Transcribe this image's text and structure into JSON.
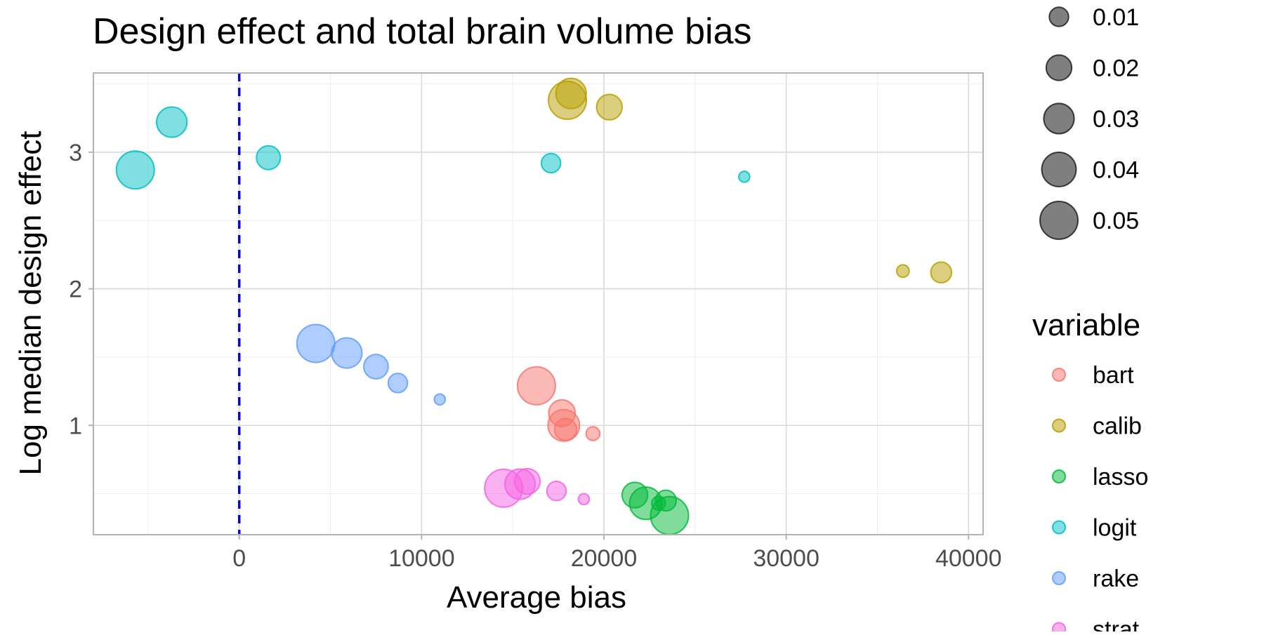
{
  "chart_data": {
    "type": "scatter",
    "title": "Design effect and total brain volume bias",
    "xlabel": "Average bias",
    "ylabel": "Log median design effect",
    "xlim": [
      -8000,
      40800
    ],
    "ylim": [
      0.2,
      3.58
    ],
    "x_ticks": [
      0,
      10000,
      20000,
      30000,
      40000
    ],
    "x_tick_labels": [
      "0",
      "10000",
      "20000",
      "30000",
      "40000"
    ],
    "y_ticks": [
      1,
      2,
      3
    ],
    "y_tick_labels": [
      "1",
      "2",
      "3"
    ],
    "grid": true,
    "reference_line": {
      "axis": "x",
      "value": 0,
      "style": "dashed",
      "color": "#0000EE"
    },
    "size_legend": {
      "title": "",
      "values": [
        0.01,
        0.02,
        0.03,
        0.04,
        0.05
      ],
      "labels": [
        "0.01",
        "0.02",
        "0.03",
        "0.04",
        "0.05"
      ]
    },
    "color_legend": {
      "title": "variable",
      "placement": "right"
    },
    "series": [
      {
        "name": "bart",
        "color": "#F8766D",
        "points": [
          {
            "x": 16300,
            "y": 1.29,
            "size": 0.05
          },
          {
            "x": 17700,
            "y": 1.09,
            "size": 0.022
          },
          {
            "x": 17800,
            "y": 1.0,
            "size": 0.033
          },
          {
            "x": 17900,
            "y": 0.97,
            "size": 0.014
          },
          {
            "x": 19400,
            "y": 0.94,
            "size": 0.004
          }
        ]
      },
      {
        "name": "calib",
        "color": "#B79F00",
        "points": [
          {
            "x": 18000,
            "y": 3.38,
            "size": 0.05
          },
          {
            "x": 18200,
            "y": 3.43,
            "size": 0.03
          },
          {
            "x": 20300,
            "y": 3.33,
            "size": 0.02
          },
          {
            "x": 36400,
            "y": 2.13,
            "size": 0.003
          },
          {
            "x": 38500,
            "y": 2.12,
            "size": 0.012
          }
        ]
      },
      {
        "name": "lasso",
        "color": "#00BA38",
        "points": [
          {
            "x": 21700,
            "y": 0.49,
            "size": 0.02
          },
          {
            "x": 22300,
            "y": 0.43,
            "size": 0.035
          },
          {
            "x": 23000,
            "y": 0.43,
            "size": 0.004
          },
          {
            "x": 23400,
            "y": 0.45,
            "size": 0.012
          },
          {
            "x": 23600,
            "y": 0.34,
            "size": 0.05
          }
        ]
      },
      {
        "name": "logit",
        "color": "#00BFC4",
        "points": [
          {
            "x": -5700,
            "y": 2.87,
            "size": 0.05
          },
          {
            "x": -3700,
            "y": 3.22,
            "size": 0.03
          },
          {
            "x": 1600,
            "y": 2.96,
            "size": 0.017
          },
          {
            "x": 17100,
            "y": 2.92,
            "size": 0.01
          },
          {
            "x": 27700,
            "y": 2.82,
            "size": 0.002
          }
        ]
      },
      {
        "name": "rake",
        "color": "#619CFF",
        "points": [
          {
            "x": 4200,
            "y": 1.6,
            "size": 0.05
          },
          {
            "x": 5900,
            "y": 1.53,
            "size": 0.03
          },
          {
            "x": 7500,
            "y": 1.43,
            "size": 0.018
          },
          {
            "x": 8700,
            "y": 1.31,
            "size": 0.01
          },
          {
            "x": 11000,
            "y": 1.19,
            "size": 0.002
          }
        ]
      },
      {
        "name": "strat",
        "color": "#F564E3",
        "points": [
          {
            "x": 14500,
            "y": 0.54,
            "size": 0.05
          },
          {
            "x": 15400,
            "y": 0.57,
            "size": 0.03
          },
          {
            "x": 15800,
            "y": 0.59,
            "size": 0.02
          },
          {
            "x": 17400,
            "y": 0.52,
            "size": 0.01
          },
          {
            "x": 18900,
            "y": 0.46,
            "size": 0.002
          }
        ]
      }
    ]
  }
}
